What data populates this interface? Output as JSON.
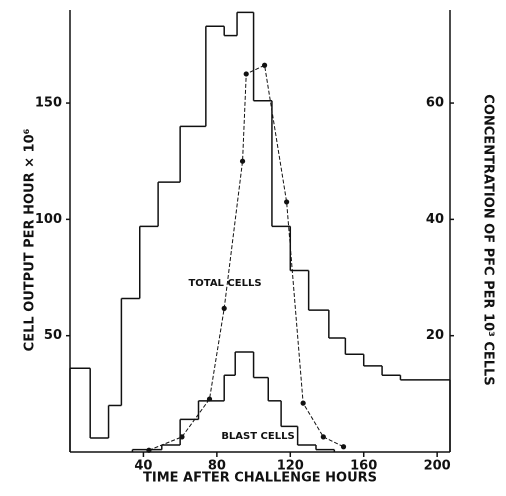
{
  "chart_data": {
    "type": "combo",
    "x_label": "TIME AFTER CHALLENGE HOURS",
    "y_label": "CELL OUTPUT PER HOUR × 10⁶",
    "y2_label": "CONCENTRATION OF PFC PER 10³ CELLS",
    "xlim": [
      0,
      207
    ],
    "xticks": [
      40,
      80,
      120,
      160,
      200
    ],
    "ylim": [
      0,
      190
    ],
    "yticks": [
      50,
      100,
      150
    ],
    "y2lim": [
      0,
      76
    ],
    "y2ticks": [
      20,
      40,
      60
    ],
    "color": "#111111",
    "series": [
      {
        "name": "TOTAL CELLS",
        "type": "step",
        "color": "#111111",
        "bins": [
          0,
          11,
          21,
          28,
          38,
          48,
          60,
          74,
          84,
          91,
          100,
          110,
          120,
          130,
          141,
          150,
          160,
          170,
          180,
          207
        ],
        "values": [
          36,
          6,
          20,
          66,
          97,
          116,
          140,
          183,
          179,
          189,
          151,
          97,
          78,
          61,
          49,
          42,
          37,
          33,
          31
        ]
      },
      {
        "name": "BLAST CELLS",
        "type": "step",
        "color": "#111111",
        "bins": [
          34,
          50,
          60,
          70,
          84,
          90,
          100,
          108,
          115,
          124,
          134,
          144
        ],
        "values": [
          1,
          3,
          14,
          22,
          33,
          43,
          32,
          22,
          11,
          3,
          1
        ]
      },
      {
        "type": "line",
        "axis": "y2",
        "color": "#111111",
        "x": [
          43,
          61,
          76,
          84,
          94,
          96,
          106,
          118,
          127,
          138,
          149
        ],
        "values": [
          0.3,
          2.6,
          9.1,
          24.7,
          50,
          65,
          66.5,
          43,
          8.4,
          2.6,
          0.9
        ]
      }
    ]
  }
}
